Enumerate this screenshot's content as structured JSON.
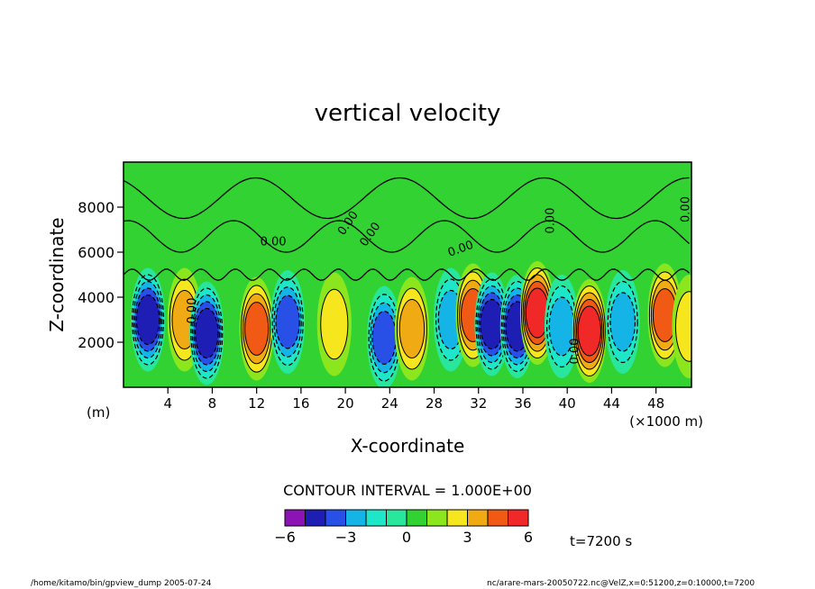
{
  "chart_data": {
    "type": "heatmap",
    "title": "vertical velocity",
    "xlabel": "X-coordinate",
    "ylabel": "Z-coordinate",
    "x_unit_label": "(×1000 m)",
    "y_unit_label": "(m)",
    "x_ticks": [
      4,
      8,
      12,
      16,
      20,
      24,
      28,
      32,
      36,
      40,
      44,
      48
    ],
    "y_ticks": [
      2000,
      4000,
      6000,
      8000
    ],
    "xlim": [
      0,
      51.2
    ],
    "ylim": [
      0,
      10000
    ],
    "contour_label": "0.00",
    "contour_interval_text": "CONTOUR INTERVAL = 1.000E+00",
    "colorbar": {
      "levels": [
        -6,
        -5,
        -4,
        -3,
        -2,
        -1,
        0,
        1,
        2,
        3,
        4,
        5,
        6
      ],
      "tick_labels": [
        "−6",
        "−3",
        "0",
        "3",
        "6"
      ],
      "tick_values": [
        -6,
        -3,
        0,
        3,
        6
      ],
      "colors": [
        "#8c14b4",
        "#1e1eb4",
        "#2850e6",
        "#14b4e6",
        "#1ee6c8",
        "#28e69b",
        "#32d232",
        "#8ce61e",
        "#f5e61e",
        "#f0aa14",
        "#f05a14",
        "#f02828",
        "#f09aa0"
      ]
    },
    "features": [
      {
        "x": 2.2,
        "z": 3000,
        "value": -5
      },
      {
        "x": 5.5,
        "z": 3000,
        "value": 3
      },
      {
        "x": 7.5,
        "z": 2400,
        "value": -5
      },
      {
        "x": 12.0,
        "z": 2600,
        "value": 4
      },
      {
        "x": 14.8,
        "z": 2900,
        "value": -4
      },
      {
        "x": 19.0,
        "z": 2800,
        "value": 2
      },
      {
        "x": 23.5,
        "z": 2200,
        "value": -4
      },
      {
        "x": 26.0,
        "z": 2600,
        "value": 3
      },
      {
        "x": 29.5,
        "z": 3000,
        "value": -3
      },
      {
        "x": 31.5,
        "z": 3200,
        "value": 4
      },
      {
        "x": 33.2,
        "z": 2800,
        "value": -5
      },
      {
        "x": 35.5,
        "z": 2700,
        "value": -5
      },
      {
        "x": 37.3,
        "z": 3300,
        "value": 5
      },
      {
        "x": 39.5,
        "z": 2700,
        "value": -3
      },
      {
        "x": 42.0,
        "z": 2500,
        "value": 5
      },
      {
        "x": 45.0,
        "z": 2900,
        "value": -3
      },
      {
        "x": 48.8,
        "z": 3200,
        "value": 4
      },
      {
        "x": 51.0,
        "z": 2700,
        "value": 2
      }
    ]
  },
  "footer": {
    "time": "t=7200 s",
    "left_note": "/home/kitamo/bin/gpview_dump   2005-07-24",
    "right_note": "nc/arare-mars-20050722.nc@VelZ,x=0:51200,z=0:10000,t=7200"
  }
}
